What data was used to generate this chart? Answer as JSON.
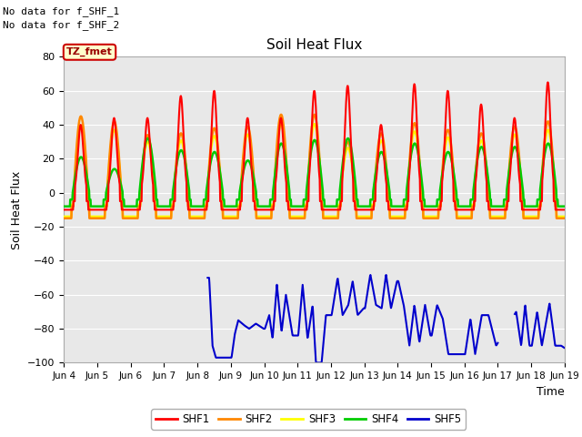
{
  "title": "Soil Heat Flux",
  "ylabel": "Soil Heat Flux",
  "xlabel": "Time",
  "ylim": [
    -100,
    80
  ],
  "annotation_text1": "No data for f_SHF_1",
  "annotation_text2": "No data for f_SHF_2",
  "legend_box_text": "TZ_fmet",
  "background_color": "#e8e8e8",
  "plot_bg_color": "#e8e8e8",
  "series_colors": {
    "SHF1": "#ff0000",
    "SHF2": "#ff8800",
    "SHF3": "#ffff00",
    "SHF4": "#00cc00",
    "SHF5": "#0000cc"
  },
  "x_tick_labels": [
    "Jun 4",
    "Jun 5",
    "Jun 6",
    "Jun 7",
    "Jun 8",
    "Jun 9",
    "Jun 10",
    "Jun 11",
    "Jun 12",
    "Jun 13",
    "Jun 14",
    "Jun 15",
    "Jun 16",
    "Jun 17",
    "Jun 18",
    "Jun 19"
  ],
  "yticks": [
    80,
    60,
    40,
    20,
    0,
    -20,
    -40,
    -60,
    -80,
    -100
  ],
  "n_points": 1440,
  "n_days": 15
}
